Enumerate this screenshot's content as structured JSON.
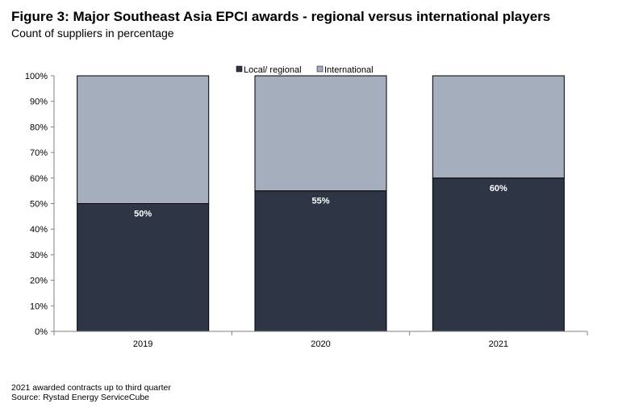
{
  "title": "Figure 3: Major Southeast Asia EPCI awards - regional versus international players",
  "subtitle": "Count of suppliers in percentage",
  "colors": {
    "local": "#2e3646",
    "international": "#a4aebd",
    "axis": "#808080"
  },
  "chart_data": {
    "type": "bar",
    "stacked": true,
    "categories": [
      "2019",
      "2020",
      "2021"
    ],
    "series": [
      {
        "name": "Local/ regional",
        "values": [
          50,
          55,
          60
        ],
        "labels": [
          "50%",
          "55%",
          "60%"
        ]
      },
      {
        "name": "International",
        "values": [
          50,
          45,
          40
        ]
      }
    ],
    "ylim": [
      0,
      100
    ],
    "yticks": [
      "0%",
      "10%",
      "20%",
      "30%",
      "40%",
      "50%",
      "60%",
      "70%",
      "80%",
      "90%",
      "100%"
    ],
    "legend_position": "top",
    "grid": false
  },
  "notes": [
    "2021 awarded contracts up to third quarter",
    "Source: Rystad Energy ServiceCube"
  ]
}
